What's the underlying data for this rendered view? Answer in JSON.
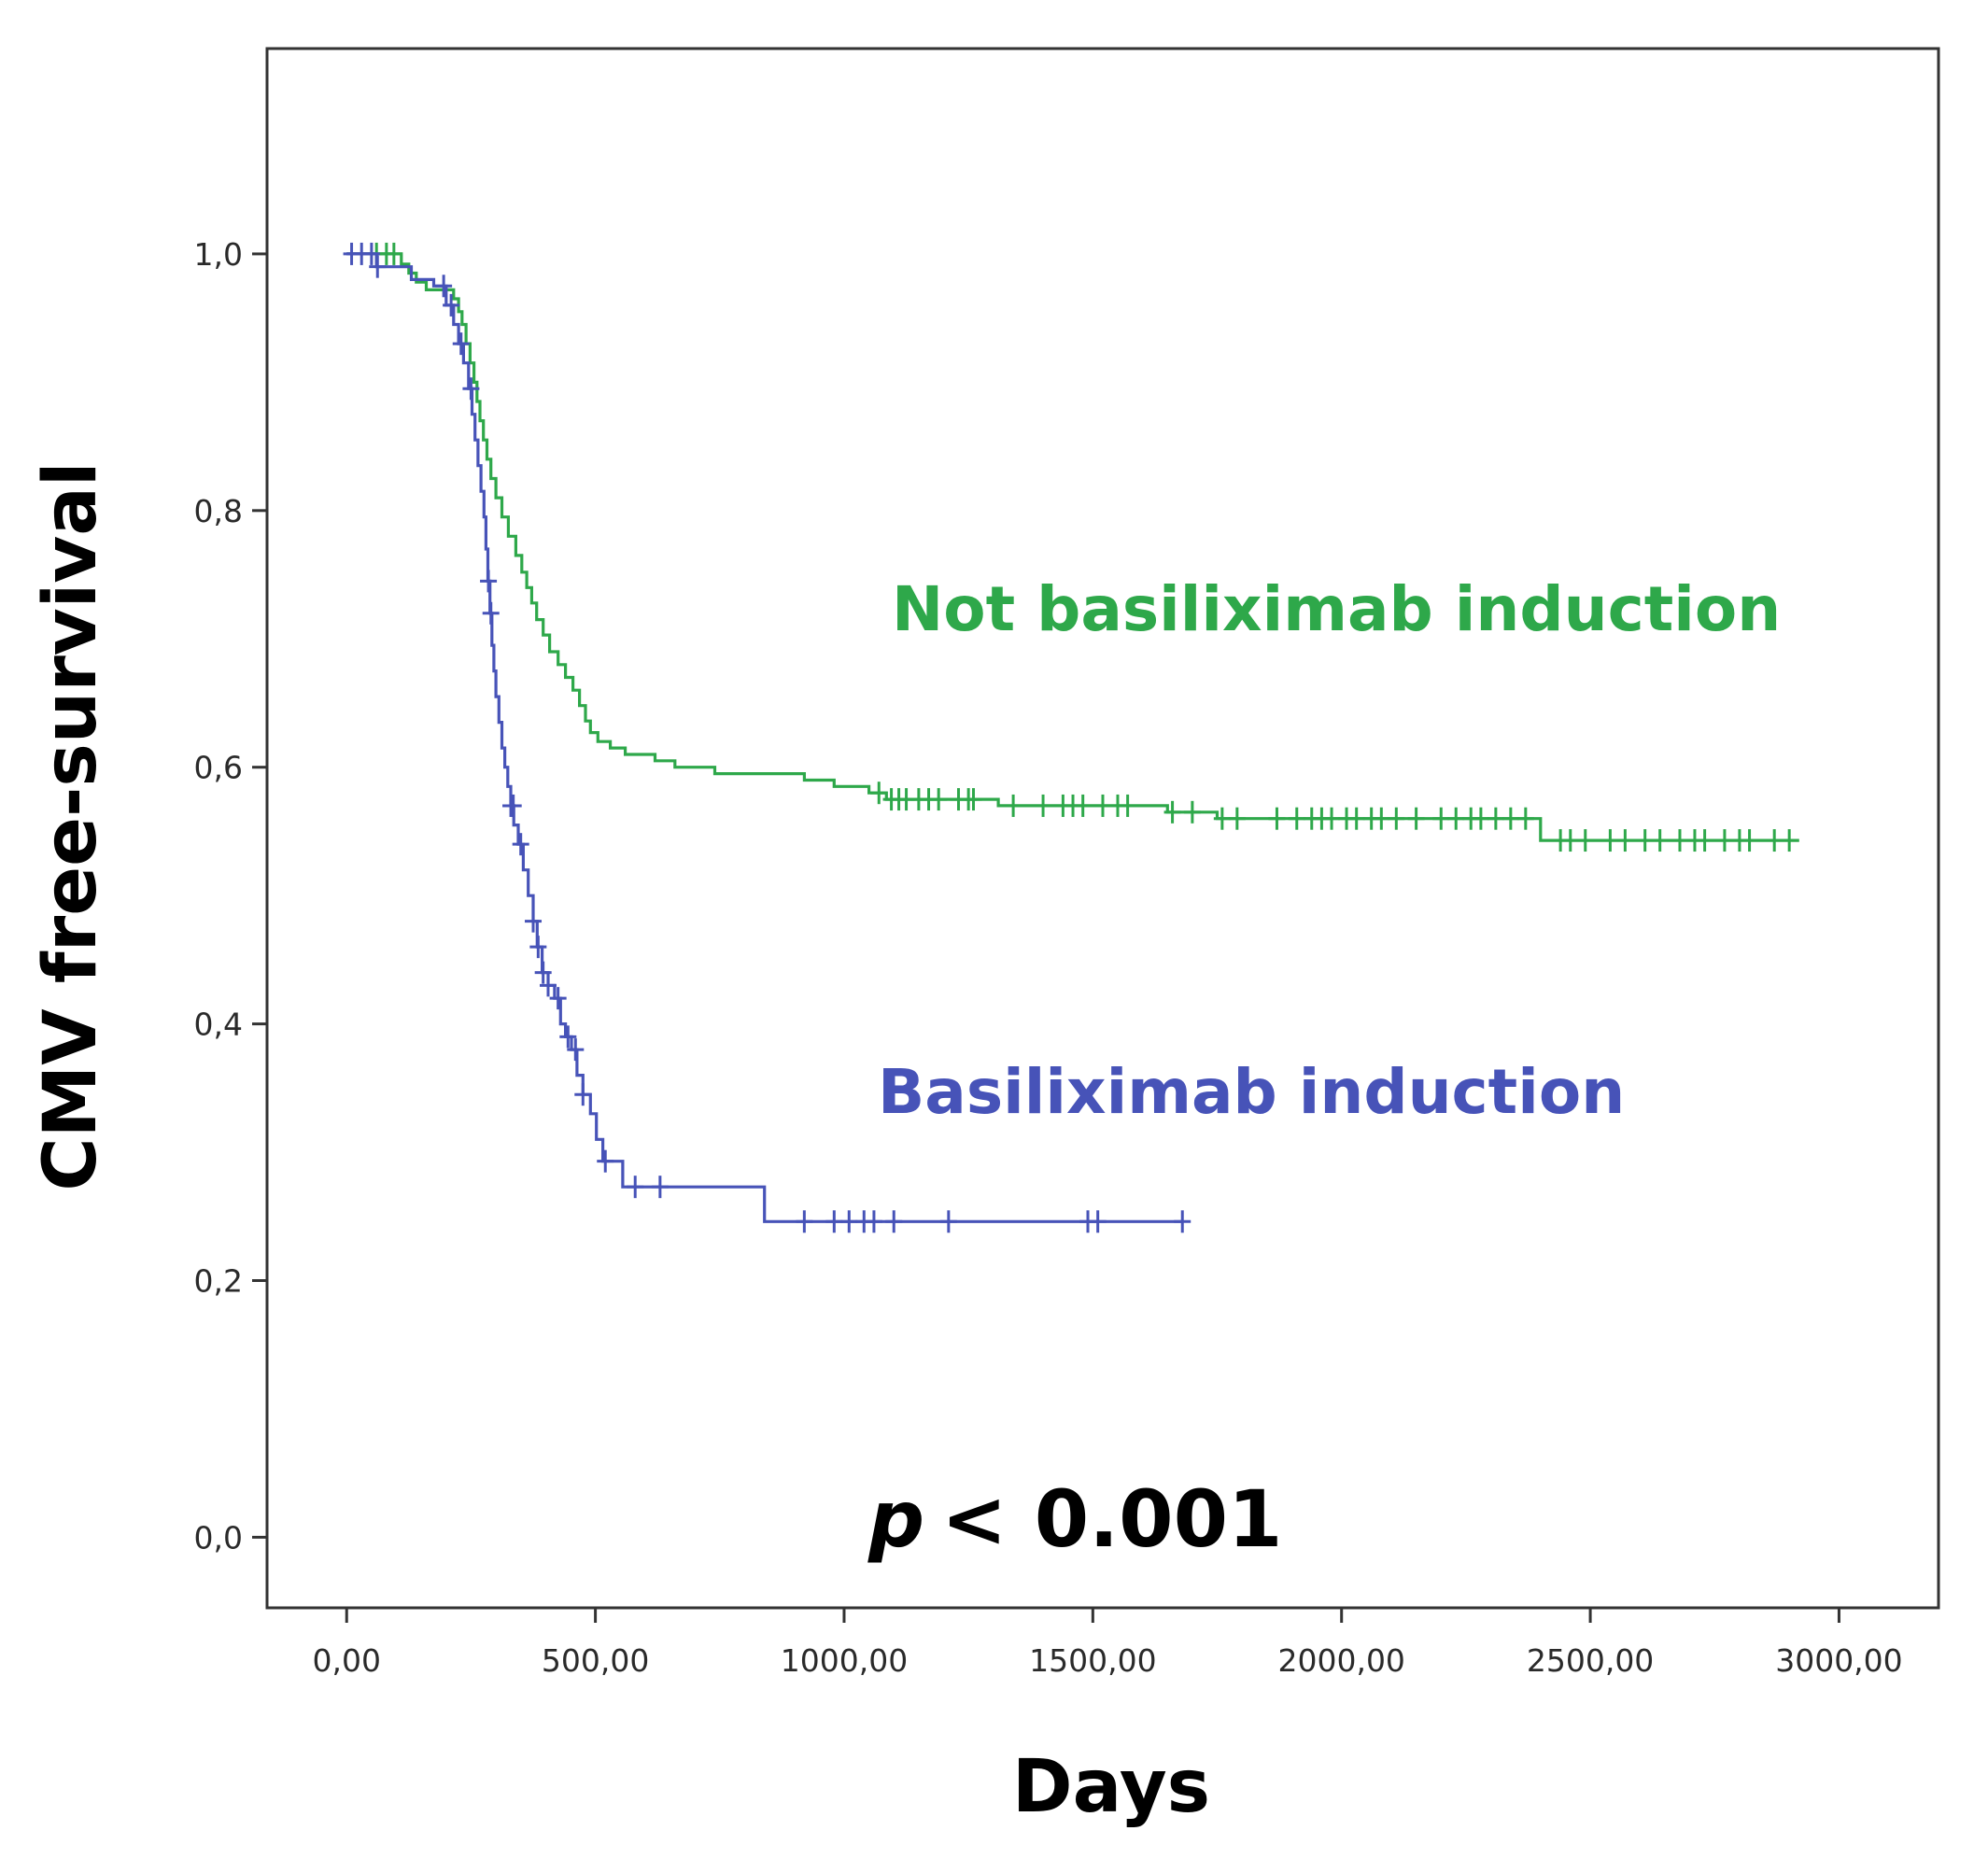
{
  "chart_data": {
    "type": "line",
    "subtype": "kaplan-meier-step",
    "xlabel": "Days",
    "ylabel": "CMV free-survival",
    "xlim": [
      -160,
      3200
    ],
    "ylim": [
      -0.055,
      1.16
    ],
    "x_ticks": [
      0,
      500,
      1000,
      1500,
      2000,
      2500,
      3000
    ],
    "x_tick_labels": [
      "0,00",
      "500,00",
      "1000,00",
      "1500,00",
      "2000,00",
      "2500,00",
      "3000,00"
    ],
    "y_ticks": [
      0,
      0.2,
      0.4,
      0.6,
      0.8,
      1.0
    ],
    "y_tick_labels": [
      "0,0",
      "0,2",
      "0,4",
      "0,6",
      "0,8",
      "1,0"
    ],
    "grid": false,
    "annotation": {
      "p_symbol": "p",
      "p_rest": "< 0.001"
    },
    "series": [
      {
        "name": "Not basiliximab induction",
        "color": "#2ea84a",
        "steps": [
          [
            0,
            1.0
          ],
          [
            110,
            0.992
          ],
          [
            125,
            0.985
          ],
          [
            140,
            0.978
          ],
          [
            160,
            0.972
          ],
          [
            215,
            0.965
          ],
          [
            225,
            0.955
          ],
          [
            232,
            0.945
          ],
          [
            240,
            0.93
          ],
          [
            248,
            0.915
          ],
          [
            256,
            0.9
          ],
          [
            262,
            0.885
          ],
          [
            268,
            0.87
          ],
          [
            275,
            0.855
          ],
          [
            282,
            0.84
          ],
          [
            290,
            0.825
          ],
          [
            300,
            0.81
          ],
          [
            312,
            0.795
          ],
          [
            325,
            0.78
          ],
          [
            340,
            0.765
          ],
          [
            352,
            0.752
          ],
          [
            362,
            0.74
          ],
          [
            372,
            0.728
          ],
          [
            382,
            0.715
          ],
          [
            395,
            0.703
          ],
          [
            408,
            0.69
          ],
          [
            425,
            0.68
          ],
          [
            440,
            0.67
          ],
          [
            455,
            0.66
          ],
          [
            468,
            0.648
          ],
          [
            480,
            0.636
          ],
          [
            490,
            0.627
          ],
          [
            505,
            0.62
          ],
          [
            530,
            0.615
          ],
          [
            560,
            0.61
          ],
          [
            620,
            0.605
          ],
          [
            660,
            0.6
          ],
          [
            740,
            0.595
          ],
          [
            920,
            0.59
          ],
          [
            980,
            0.585
          ],
          [
            1050,
            0.58
          ],
          [
            1085,
            0.575
          ],
          [
            1310,
            0.57
          ],
          [
            1650,
            0.565
          ],
          [
            1750,
            0.56
          ],
          [
            2400,
            0.543
          ],
          [
            2920,
            0.543
          ]
        ],
        "censor_x": [
          60,
          80,
          95,
          1070,
          1095,
          1110,
          1125,
          1150,
          1170,
          1190,
          1230,
          1250,
          1260,
          1340,
          1400,
          1440,
          1460,
          1480,
          1520,
          1550,
          1570,
          1660,
          1700,
          1760,
          1790,
          1870,
          1910,
          1940,
          1960,
          1980,
          2010,
          2030,
          2060,
          2080,
          2110,
          2150,
          2200,
          2230,
          2260,
          2280,
          2310,
          2340,
          2370,
          2440,
          2460,
          2490,
          2540,
          2570,
          2610,
          2640,
          2680,
          2710,
          2730,
          2770,
          2800,
          2820,
          2870,
          2900
        ]
      },
      {
        "name": "Basiliximab induction",
        "color": "#4753b8",
        "steps": [
          [
            0,
            1.0
          ],
          [
            60,
            0.99
          ],
          [
            130,
            0.98
          ],
          [
            175,
            0.975
          ],
          [
            200,
            0.96
          ],
          [
            215,
            0.945
          ],
          [
            225,
            0.93
          ],
          [
            235,
            0.915
          ],
          [
            245,
            0.895
          ],
          [
            252,
            0.875
          ],
          [
            258,
            0.855
          ],
          [
            264,
            0.835
          ],
          [
            270,
            0.815
          ],
          [
            276,
            0.795
          ],
          [
            280,
            0.77
          ],
          [
            284,
            0.745
          ],
          [
            288,
            0.72
          ],
          [
            292,
            0.695
          ],
          [
            296,
            0.675
          ],
          [
            300,
            0.655
          ],
          [
            306,
            0.635
          ],
          [
            312,
            0.615
          ],
          [
            318,
            0.6
          ],
          [
            324,
            0.585
          ],
          [
            330,
            0.57
          ],
          [
            336,
            0.555
          ],
          [
            345,
            0.54
          ],
          [
            355,
            0.52
          ],
          [
            365,
            0.5
          ],
          [
            375,
            0.48
          ],
          [
            383,
            0.46
          ],
          [
            393,
            0.44
          ],
          [
            405,
            0.43
          ],
          [
            418,
            0.42
          ],
          [
            430,
            0.4
          ],
          [
            440,
            0.39
          ],
          [
            452,
            0.38
          ],
          [
            463,
            0.36
          ],
          [
            475,
            0.345
          ],
          [
            490,
            0.33
          ],
          [
            502,
            0.31
          ],
          [
            515,
            0.293
          ],
          [
            555,
            0.273
          ],
          [
            840,
            0.246
          ],
          [
            1680,
            0.246
          ]
        ],
        "censor_x": [
          10,
          30,
          50,
          62,
          195,
          210,
          230,
          250,
          285,
          290,
          330,
          335,
          350,
          375,
          385,
          395,
          405,
          425,
          445,
          460,
          475,
          520,
          580,
          630,
          920,
          980,
          1010,
          1040,
          1060,
          1100,
          1210,
          1490,
          1510,
          1680
        ]
      }
    ]
  }
}
